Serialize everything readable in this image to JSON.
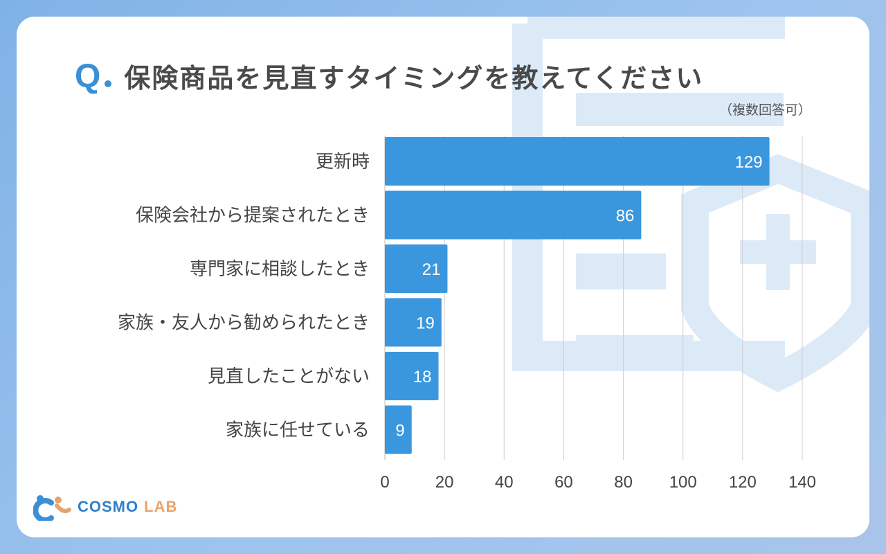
{
  "title": {
    "q_mark": "Q",
    "text": "保険商品を見直すタイミングを教えてください",
    "note": "（複数回答可）"
  },
  "brand": {
    "name_main": "COSMO",
    "name_sub": "LAB"
  },
  "colors": {
    "bar": "#3a97de",
    "accent": "#3a8fd6",
    "grid": "#cfcfcf",
    "decor": "#dceaf8"
  },
  "chart_data": {
    "type": "bar",
    "orientation": "horizontal",
    "categories": [
      "更新時",
      "保険会社から提案されたとき",
      "専門家に相談したとき",
      "家族・友人から勧められたとき",
      "見直したことがない",
      "家族に任せている"
    ],
    "values": [
      129,
      86,
      21,
      19,
      18,
      9
    ],
    "xlim": [
      0,
      140
    ],
    "xticks": [
      0,
      20,
      40,
      60,
      80,
      100,
      120,
      140
    ],
    "title": "保険商品を見直すタイミングを教えてください",
    "grid": true
  }
}
